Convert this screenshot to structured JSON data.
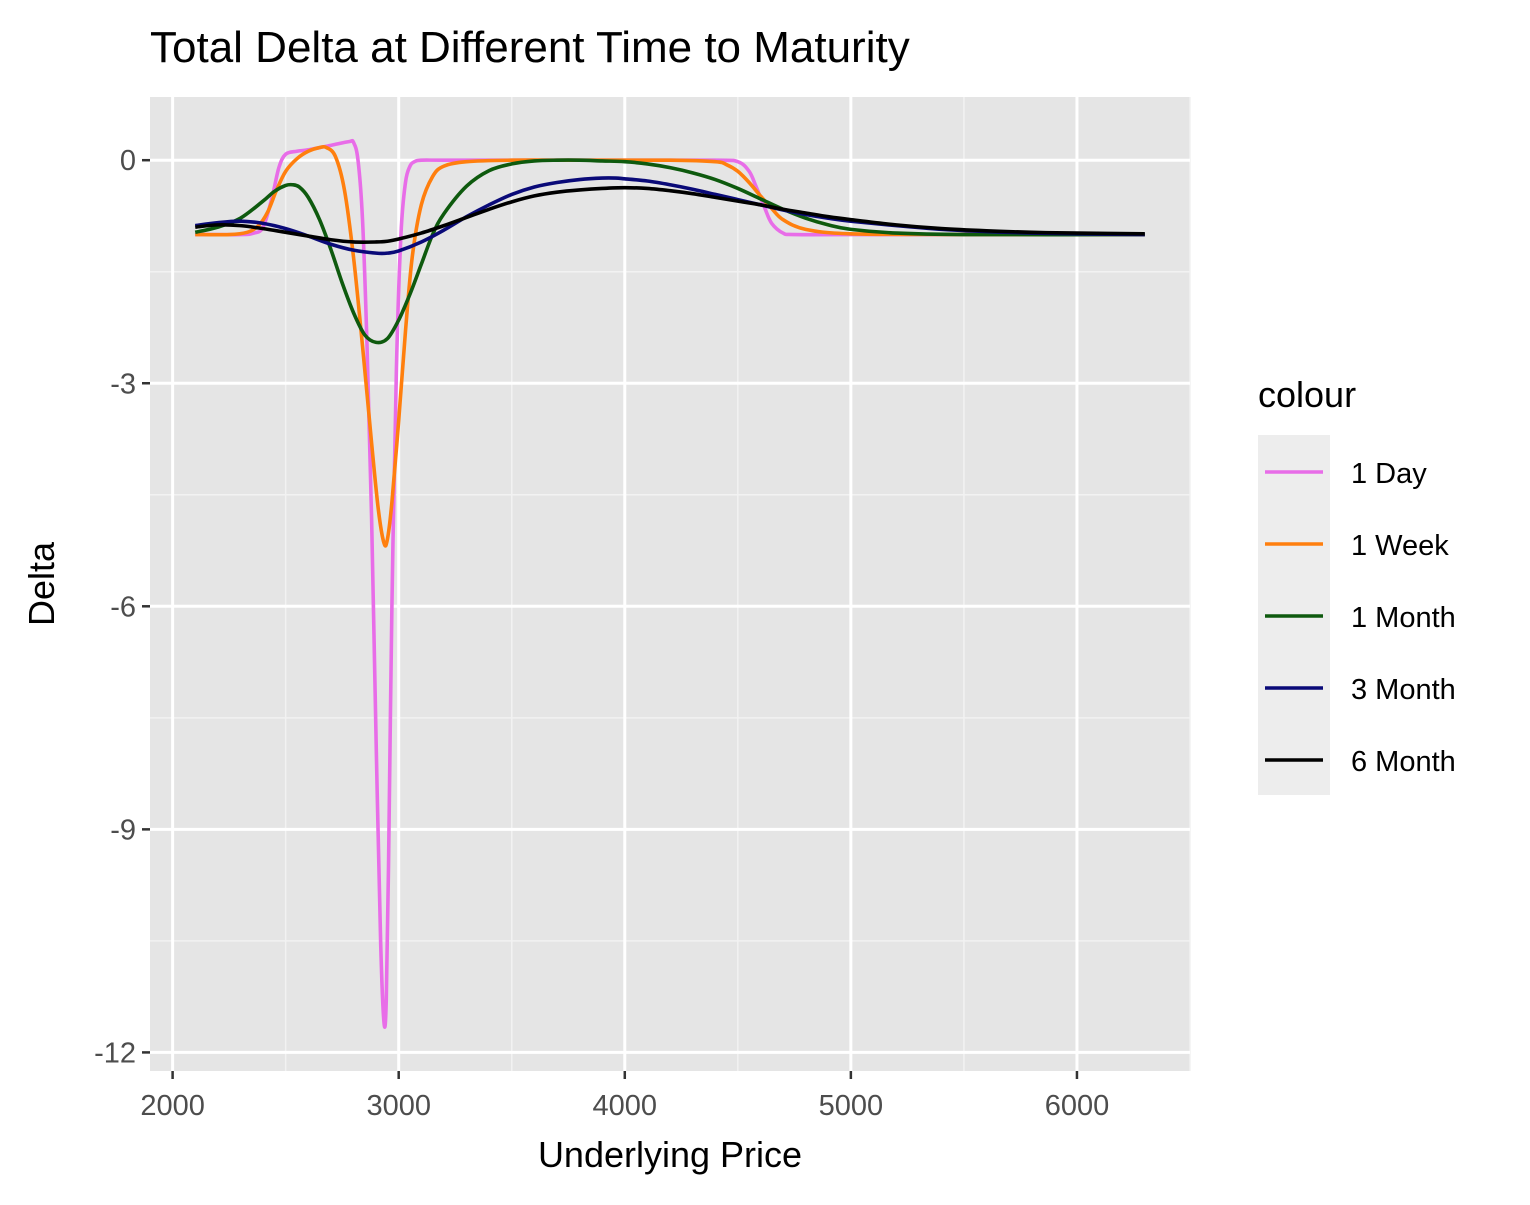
{
  "chart_data": {
    "type": "line",
    "title": "Total Delta at Different Time to Maturity",
    "xlabel": "Underlying Price",
    "ylabel": "Delta",
    "xlim": [
      1900,
      6500
    ],
    "ylim": [
      -12.25,
      0.85
    ],
    "x_ticks": [
      2000,
      3000,
      4000,
      5000,
      6000
    ],
    "x_tick_labels": [
      "2000",
      "3000",
      "4000",
      "5000",
      "6000"
    ],
    "y_ticks": [
      0,
      -3,
      -6,
      -9,
      -12
    ],
    "y_tick_labels": [
      "0",
      "-3",
      "-6",
      "-9",
      "-12"
    ],
    "grid": true,
    "panel_background": "#e5e5e5",
    "legend": {
      "title": "colour",
      "position": "right",
      "entries": [
        "1 Day",
        "1 Week",
        "1 Month",
        "3 Month",
        "6 Month"
      ]
    },
    "series": [
      {
        "name": "1 Day",
        "color": "#e86de8",
        "x": [
          2100,
          2300,
          2360,
          2400,
          2440,
          2470,
          2500,
          2550,
          2600,
          2700,
          2780,
          2800,
          2820,
          2840,
          2860,
          2880,
          2900,
          2920,
          2935,
          2945,
          2955,
          2970,
          2990,
          3010,
          3030,
          3050,
          3070,
          3100,
          3200,
          3500,
          4000,
          4400,
          4500,
          4550,
          4580,
          4600,
          4620,
          4650,
          4700,
          4750,
          5000,
          6300
        ],
        "y": [
          -1.0,
          -1.0,
          -0.98,
          -0.9,
          -0.5,
          -0.1,
          0.08,
          0.12,
          0.14,
          0.2,
          0.25,
          0.24,
          0.0,
          -0.8,
          -2.5,
          -4.8,
          -7.8,
          -10.5,
          -11.6,
          -11.3,
          -9.5,
          -6.0,
          -2.8,
          -1.0,
          -0.3,
          -0.08,
          -0.02,
          0.0,
          0.0,
          0.0,
          0.0,
          0.0,
          -0.02,
          -0.15,
          -0.35,
          -0.5,
          -0.65,
          -0.85,
          -0.98,
          -1.0,
          -1.0,
          -1.0
        ]
      },
      {
        "name": "1 Week",
        "color": "#ff7f0e",
        "x": [
          2100,
          2250,
          2330,
          2380,
          2420,
          2460,
          2500,
          2550,
          2600,
          2650,
          2680,
          2720,
          2760,
          2800,
          2840,
          2880,
          2910,
          2935,
          2950,
          2970,
          3000,
          3030,
          3060,
          3100,
          3150,
          3200,
          3300,
          3500,
          3800,
          4200,
          4400,
          4450,
          4500,
          4550,
          4600,
          4650,
          4700,
          4800,
          5000,
          5500,
          6300
        ],
        "y": [
          -1.0,
          -1.0,
          -0.97,
          -0.88,
          -0.7,
          -0.4,
          -0.15,
          0.02,
          0.12,
          0.17,
          0.17,
          0.05,
          -0.4,
          -1.3,
          -2.5,
          -3.8,
          -4.7,
          -5.15,
          -5.1,
          -4.6,
          -3.5,
          -2.3,
          -1.3,
          -0.6,
          -0.22,
          -0.08,
          -0.02,
          0.0,
          0.0,
          0.0,
          -0.02,
          -0.06,
          -0.15,
          -0.3,
          -0.48,
          -0.65,
          -0.8,
          -0.93,
          -0.99,
          -1.0,
          -1.0
        ]
      },
      {
        "name": "1 Month",
        "color": "#0e5a0e",
        "x": [
          2100,
          2200,
          2300,
          2400,
          2450,
          2500,
          2530,
          2560,
          2600,
          2650,
          2700,
          2750,
          2800,
          2850,
          2900,
          2950,
          3000,
          3050,
          3100,
          3150,
          3200,
          3300,
          3400,
          3500,
          3600,
          3700,
          3800,
          3900,
          4000,
          4100,
          4200,
          4300,
          4400,
          4500,
          4600,
          4700,
          4800,
          4900,
          5000,
          5200,
          5500,
          6300
        ],
        "y": [
          -0.97,
          -0.9,
          -0.78,
          -0.55,
          -0.42,
          -0.34,
          -0.33,
          -0.36,
          -0.5,
          -0.8,
          -1.2,
          -1.65,
          -2.05,
          -2.35,
          -2.45,
          -2.4,
          -2.15,
          -1.8,
          -1.4,
          -1.0,
          -0.72,
          -0.35,
          -0.14,
          -0.05,
          -0.01,
          0.0,
          0.0,
          -0.01,
          -0.02,
          -0.05,
          -0.1,
          -0.17,
          -0.26,
          -0.38,
          -0.52,
          -0.66,
          -0.78,
          -0.87,
          -0.93,
          -0.98,
          -1.0,
          -1.0
        ]
      },
      {
        "name": "3 Month",
        "color": "#0a0a78",
        "x": [
          2100,
          2200,
          2300,
          2400,
          2500,
          2600,
          2700,
          2800,
          2900,
          2950,
          3000,
          3100,
          3200,
          3300,
          3400,
          3500,
          3600,
          3700,
          3800,
          3900,
          3960,
          4000,
          4100,
          4200,
          4300,
          4400,
          4500,
          4600,
          4700,
          4800,
          4900,
          5000,
          5200,
          5400,
          5600,
          5800,
          6000,
          6300
        ],
        "y": [
          -0.88,
          -0.84,
          -0.82,
          -0.85,
          -0.92,
          -1.02,
          -1.13,
          -1.21,
          -1.25,
          -1.25,
          -1.22,
          -1.1,
          -0.94,
          -0.76,
          -0.6,
          -0.46,
          -0.36,
          -0.3,
          -0.26,
          -0.24,
          -0.24,
          -0.25,
          -0.28,
          -0.33,
          -0.39,
          -0.46,
          -0.53,
          -0.6,
          -0.67,
          -0.73,
          -0.78,
          -0.82,
          -0.88,
          -0.93,
          -0.96,
          -0.98,
          -0.99,
          -1.0
        ]
      },
      {
        "name": "6 Month",
        "color": "#000000",
        "x": [
          2100,
          2200,
          2300,
          2400,
          2500,
          2600,
          2700,
          2800,
          2900,
          2950,
          3000,
          3100,
          3200,
          3300,
          3400,
          3500,
          3600,
          3700,
          3800,
          3900,
          4000,
          4100,
          4200,
          4300,
          4400,
          4500,
          4600,
          4700,
          4800,
          4900,
          5000,
          5200,
          5400,
          5600,
          5800,
          6000,
          6300
        ],
        "y": [
          -0.9,
          -0.87,
          -0.88,
          -0.92,
          -0.97,
          -1.02,
          -1.07,
          -1.1,
          -1.1,
          -1.09,
          -1.06,
          -0.98,
          -0.88,
          -0.77,
          -0.66,
          -0.56,
          -0.48,
          -0.43,
          -0.4,
          -0.38,
          -0.37,
          -0.38,
          -0.41,
          -0.45,
          -0.5,
          -0.55,
          -0.6,
          -0.66,
          -0.71,
          -0.76,
          -0.8,
          -0.87,
          -0.92,
          -0.95,
          -0.97,
          -0.98,
          -0.99
        ]
      }
    ]
  }
}
